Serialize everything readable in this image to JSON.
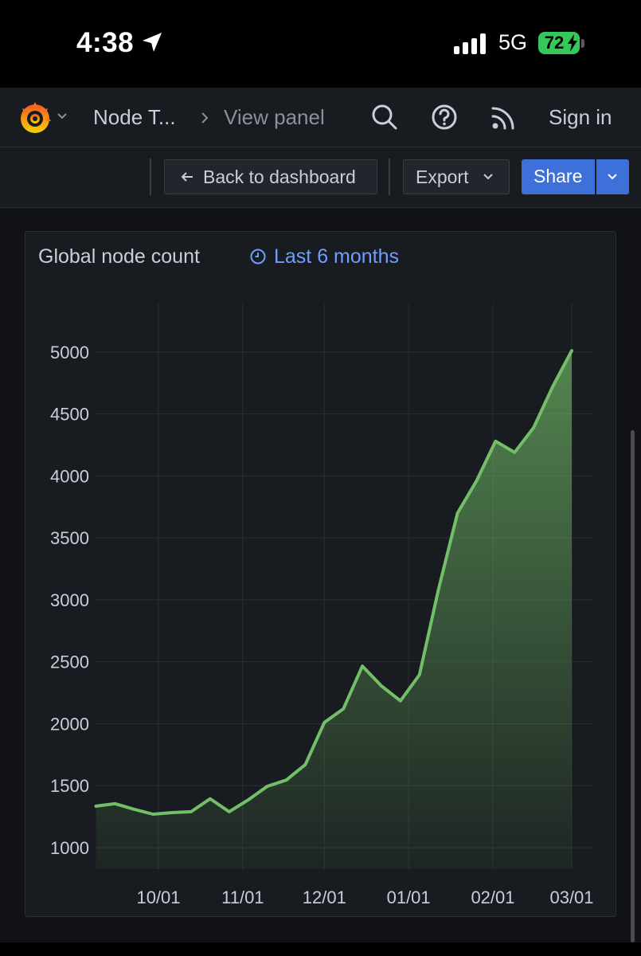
{
  "status_bar": {
    "time": "4:38",
    "network": "5G",
    "battery": "72",
    "icons": [
      "location-arrow-icon",
      "signal-bars-icon",
      "battery-charging-icon"
    ]
  },
  "nav": {
    "logo_icon": "grafana-logo-icon",
    "breadcrumb": [
      "Node T...",
      "View panel"
    ],
    "sign_in": "Sign in",
    "icons": [
      "search-icon",
      "help-icon",
      "rss-icon"
    ]
  },
  "toolbar": {
    "back_label": "Back to dashboard",
    "export_label": "Export",
    "share_label": "Share"
  },
  "panel": {
    "title": "Global node count",
    "time_range": "Last 6 months"
  },
  "colors": {
    "line": "#73bf69",
    "accent": "#3d71d9",
    "time_range": "#6e9fff",
    "background": "#111217",
    "panel": "#181b1f"
  },
  "chart_data": {
    "type": "area",
    "title": "Global node count",
    "x_unit": "date",
    "x_ticks": [
      "10/01",
      "11/01",
      "12/01",
      "01/01",
      "02/01",
      "03/01"
    ],
    "y_ticks": [
      1000,
      1500,
      2000,
      2500,
      3000,
      3500,
      4000,
      4500,
      5000
    ],
    "ylim": [
      1000,
      5200
    ],
    "grid": true,
    "legend": "none",
    "series": [
      {
        "color": "#73bf69",
        "points": [
          [
            "09-08",
            1335
          ],
          [
            "09-15",
            1355
          ],
          [
            "09-22",
            1310
          ],
          [
            "09-29",
            1270
          ],
          [
            "10-06",
            1283
          ],
          [
            "10-13",
            1290
          ],
          [
            "10-20",
            1395
          ],
          [
            "10-27",
            1290
          ],
          [
            "11-03",
            1385
          ],
          [
            "11-10",
            1495
          ],
          [
            "11-17",
            1545
          ],
          [
            "11-24",
            1670
          ],
          [
            "12-01",
            2010
          ],
          [
            "12-08",
            2120
          ],
          [
            "12-15",
            2465
          ],
          [
            "12-22",
            2305
          ],
          [
            "12-29",
            2185
          ],
          [
            "01-05",
            2395
          ],
          [
            "01-12",
            3085
          ],
          [
            "01-19",
            3700
          ],
          [
            "01-26",
            3960
          ],
          [
            "02-02",
            4280
          ],
          [
            "02-09",
            4190
          ],
          [
            "02-16",
            4390
          ],
          [
            "02-23",
            4720
          ],
          [
            "03-01",
            5010
          ]
        ]
      }
    ]
  }
}
